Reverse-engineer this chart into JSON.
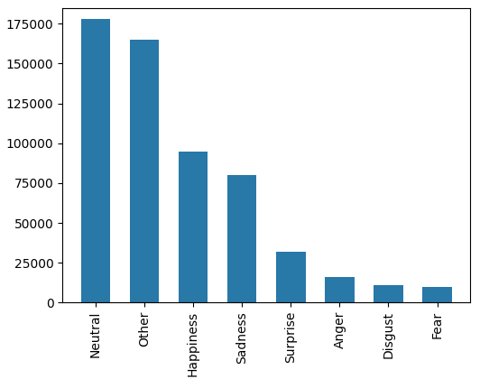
{
  "categories": [
    "Neutral",
    "Other",
    "Happiness",
    "Sadness",
    "Surprise",
    "Anger",
    "Disgust",
    "Fear"
  ],
  "values": [
    178000,
    165000,
    95000,
    80000,
    32000,
    16000,
    11000,
    10000
  ],
  "bar_color": "#2878a8",
  "background_color": "#ffffff",
  "ylim": [
    0,
    185000
  ],
  "yticks": [
    0,
    25000,
    50000,
    75000,
    100000,
    125000,
    150000,
    175000
  ],
  "figsize": [
    5.32,
    4.3
  ],
  "dpi": 100
}
